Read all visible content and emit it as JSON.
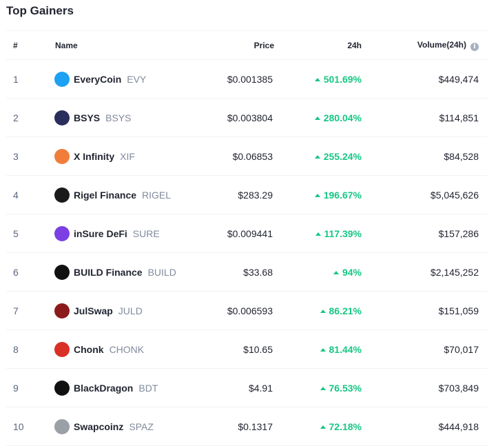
{
  "title": "Top Gainers",
  "columns": {
    "num": "#",
    "name": "Name",
    "price": "Price",
    "change": "24h",
    "volume": "Volume(24h)"
  },
  "rows": [
    {
      "rank": "1",
      "name": "EveryCoin",
      "symbol": "EVY",
      "price": "$0.001385",
      "change": "501.69%",
      "volume": "$449,474",
      "icon": "everycoin-icon",
      "color": "#1da1f2"
    },
    {
      "rank": "2",
      "name": "BSYS",
      "symbol": "BSYS",
      "price": "$0.003804",
      "change": "280.04%",
      "volume": "$114,851",
      "icon": "bsys-icon",
      "color": "#2a2e5c"
    },
    {
      "rank": "3",
      "name": "X Infinity",
      "symbol": "XIF",
      "price": "$0.06853",
      "change": "255.24%",
      "volume": "$84,528",
      "icon": "x-infinity-icon",
      "color": "#f07e3a"
    },
    {
      "rank": "4",
      "name": "Rigel Finance",
      "symbol": "RIGEL",
      "price": "$283.29",
      "change": "196.67%",
      "volume": "$5,045,626",
      "icon": "rigel-finance-icon",
      "color": "#1a1a1a"
    },
    {
      "rank": "5",
      "name": "inSure DeFi",
      "symbol": "SURE",
      "price": "$0.009441",
      "change": "117.39%",
      "volume": "$157,286",
      "icon": "insure-defi-icon",
      "color": "#7b3fe4"
    },
    {
      "rank": "6",
      "name": "BUILD Finance",
      "symbol": "BUILD",
      "price": "$33.68",
      "change": "94%",
      "volume": "$2,145,252",
      "icon": "build-finance-icon",
      "color": "#111111"
    },
    {
      "rank": "7",
      "name": "JulSwap",
      "symbol": "JULD",
      "price": "$0.006593",
      "change": "86.21%",
      "volume": "$151,059",
      "icon": "julswap-icon",
      "color": "#8b1a1a"
    },
    {
      "rank": "8",
      "name": "Chonk",
      "symbol": "CHONK",
      "price": "$10.65",
      "change": "81.44%",
      "volume": "$70,017",
      "icon": "chonk-icon",
      "color": "#d93025"
    },
    {
      "rank": "9",
      "name": "BlackDragon",
      "symbol": "BDT",
      "price": "$4.91",
      "change": "76.53%",
      "volume": "$703,849",
      "icon": "blackdragon-icon",
      "color": "#111111"
    },
    {
      "rank": "10",
      "name": "Swapcoinz",
      "symbol": "SPAZ",
      "price": "$0.1317",
      "change": "72.18%",
      "volume": "$444,918",
      "icon": "swapcoinz-icon",
      "color": "#9aa0a6"
    }
  ],
  "colors": {
    "positive": "#16c784",
    "muted": "#808a9d",
    "text": "#222531"
  }
}
